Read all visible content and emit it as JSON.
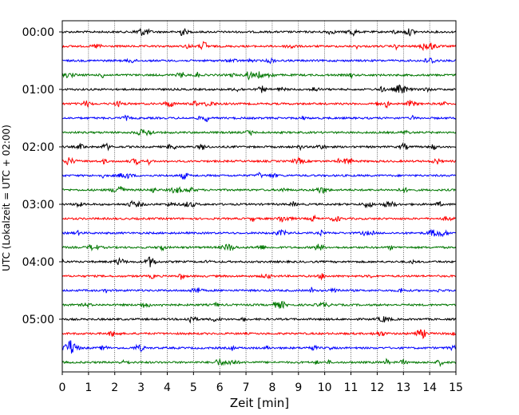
{
  "chart_data": {
    "type": "line",
    "title": "",
    "xlabel": "Zeit  [min]",
    "ylabel": "UTC (Lokalzeit = UTC + 02:00)",
    "xlim": [
      0,
      15
    ],
    "x_ticks": [
      "0",
      "1",
      "2",
      "3",
      "4",
      "5",
      "6",
      "7",
      "8",
      "9",
      "10",
      "11",
      "12",
      "13",
      "14",
      "15"
    ],
    "y_ticks": [
      "00:00",
      "01:00",
      "02:00",
      "03:00",
      "04:00",
      "05:00"
    ],
    "grid": "vertical dotted",
    "trace_colors": [
      "#000000",
      "#ff0000",
      "#0000ff",
      "#007700"
    ],
    "trace_count": 24,
    "trace_minutes": 15,
    "trace_start_times": [
      "00:00",
      "00:15",
      "00:30",
      "00:45",
      "01:00",
      "01:15",
      "01:30",
      "01:45",
      "02:00",
      "02:15",
      "02:30",
      "02:45",
      "03:00",
      "03:15",
      "03:30",
      "03:45",
      "04:00",
      "04:15",
      "04:30",
      "04:45",
      "05:00",
      "05:15",
      "05:30",
      "05:45"
    ]
  }
}
